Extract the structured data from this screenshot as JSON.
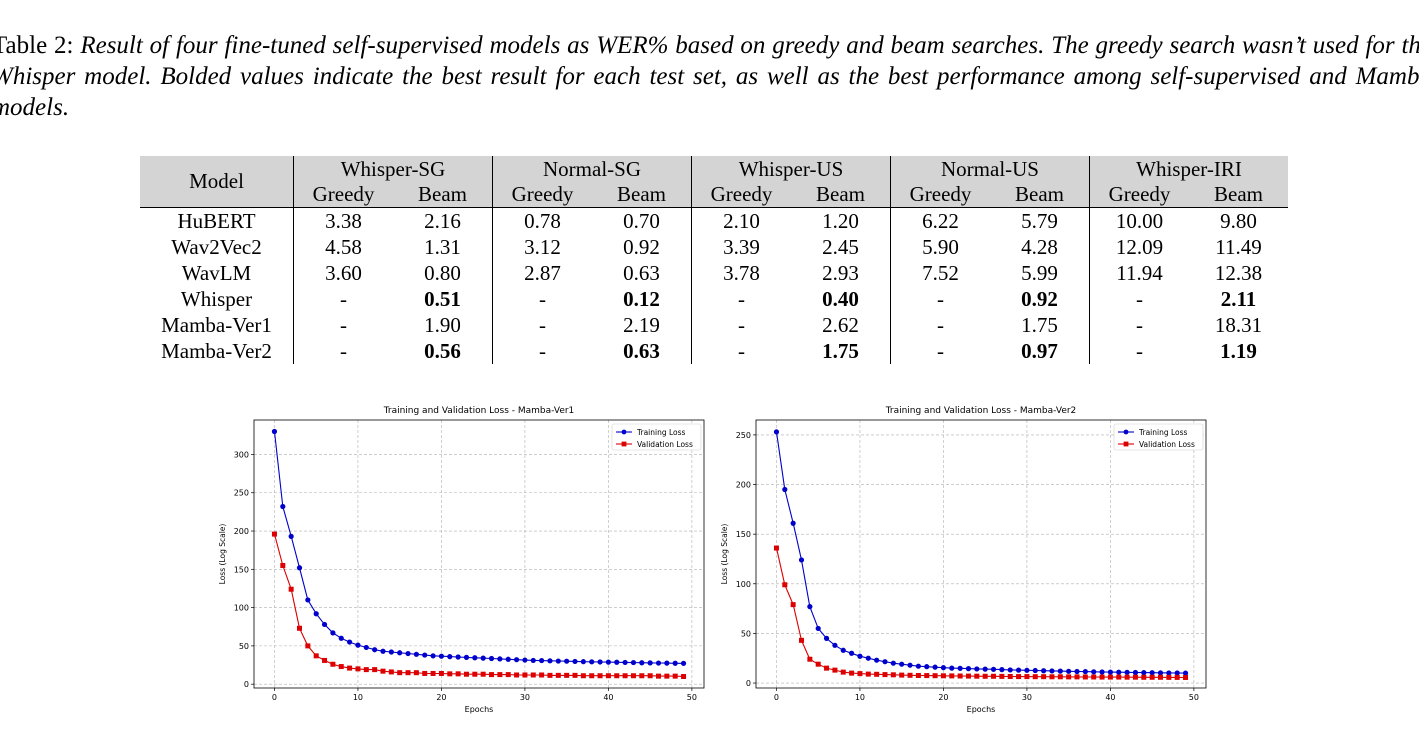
{
  "caption": {
    "label": "Table 2:",
    "text": "Result of four fine-tuned self-supervised models as WER% based on greedy and beam searches. The greedy search wasn’t used for the Whisper model. Bolded values indicate the best result for each test set, as well as the best performance among self-supervised and Mamba models."
  },
  "table": {
    "model_header": "Model",
    "groups": [
      "Whisper-SG",
      "Normal-SG",
      "Whisper-US",
      "Normal-US",
      "Whisper-IRI"
    ],
    "sub": [
      "Greedy",
      "Beam"
    ],
    "rows": [
      {
        "model": "HuBERT",
        "cells": [
          "3.38",
          "2.16",
          "0.78",
          "0.70",
          "2.10",
          "1.20",
          "6.22",
          "5.79",
          "10.00",
          "9.80"
        ],
        "bold": []
      },
      {
        "model": "Wav2Vec2",
        "cells": [
          "4.58",
          "1.31",
          "3.12",
          "0.92",
          "3.39",
          "2.45",
          "5.90",
          "4.28",
          "12.09",
          "11.49"
        ],
        "bold": []
      },
      {
        "model": "WavLM",
        "cells": [
          "3.60",
          "0.80",
          "2.87",
          "0.63",
          "3.78",
          "2.93",
          "7.52",
          "5.99",
          "11.94",
          "12.38"
        ],
        "bold": []
      },
      {
        "model": "Whisper",
        "cells": [
          "-",
          "0.51",
          "-",
          "0.12",
          "-",
          "0.40",
          "-",
          "0.92",
          "-",
          "2.11"
        ],
        "bold": [
          1,
          3,
          5,
          7,
          9
        ]
      },
      {
        "model": "Mamba-Ver1",
        "cells": [
          "-",
          "1.90",
          "-",
          "2.19",
          "-",
          "2.62",
          "-",
          "1.75",
          "-",
          "18.31"
        ],
        "bold": []
      },
      {
        "model": "Mamba-Ver2",
        "cells": [
          "-",
          "0.56",
          "-",
          "0.63",
          "-",
          "1.75",
          "-",
          "0.97",
          "-",
          "1.19"
        ],
        "bold": [
          1,
          3,
          5,
          7,
          9
        ]
      }
    ]
  },
  "chart_data": [
    {
      "type": "line",
      "title": "Training and Validation Loss - Mamba-Ver1",
      "xlabel": "Epochs",
      "ylabel": "Loss (Log Scale)",
      "xlim": [
        -2.45,
        51.45
      ],
      "ylim": [
        -5,
        345
      ],
      "xticks": [
        0,
        10,
        20,
        30,
        40,
        50
      ],
      "yticks": [
        0,
        50,
        100,
        150,
        200,
        250,
        300
      ],
      "grid": true,
      "legend": "top-right",
      "series": [
        {
          "name": "Training Loss",
          "color": "#0000cc",
          "marker": "circle",
          "values": [
            330,
            232,
            193,
            152,
            110,
            92,
            78,
            67,
            60,
            55,
            51,
            48,
            45,
            43,
            42,
            41,
            40,
            39,
            38,
            37,
            36.5,
            36,
            35.5,
            35,
            34.5,
            34,
            33.5,
            33,
            32.5,
            32,
            31.5,
            31,
            30.8,
            30.5,
            30.2,
            30,
            29.7,
            29.4,
            29.2,
            29,
            28.8,
            28.6,
            28.4,
            28.2,
            28,
            27.8,
            27.6,
            27.5,
            27.3,
            27.2
          ]
        },
        {
          "name": "Validation Loss",
          "color": "#dd0000",
          "marker": "square",
          "values": [
            196,
            155,
            124,
            73,
            50,
            37,
            31,
            26,
            23,
            21,
            20,
            19,
            19,
            17,
            16,
            15,
            15,
            15,
            14,
            14,
            14,
            13.5,
            13.5,
            13,
            13,
            13,
            12.5,
            12.5,
            12.5,
            12,
            12,
            12,
            12,
            11.5,
            11.5,
            11.5,
            11.5,
            11,
            11,
            11,
            11,
            11,
            11,
            11,
            11,
            11,
            10.5,
            10.5,
            10.5,
            10
          ]
        }
      ]
    },
    {
      "type": "line",
      "title": "Training and Validation Loss - Mamba-Ver2",
      "xlabel": "Epochs",
      "ylabel": "Loss (Log Scale)",
      "xlim": [
        -2.45,
        51.45
      ],
      "ylim": [
        -5,
        265
      ],
      "xticks": [
        0,
        10,
        20,
        30,
        40,
        50
      ],
      "yticks": [
        0,
        50,
        100,
        150,
        200,
        250
      ],
      "grid": true,
      "legend": "top-right",
      "series": [
        {
          "name": "Training Loss",
          "color": "#0000cc",
          "marker": "circle",
          "values": [
            253,
            195,
            161,
            124,
            77,
            55,
            45,
            38,
            33,
            30,
            27,
            25,
            23,
            21.5,
            20,
            19,
            18,
            17,
            16.5,
            16,
            15.5,
            15,
            14.8,
            14.5,
            14.2,
            14,
            13.8,
            13.5,
            13.2,
            13,
            12.8,
            12.6,
            12.4,
            12.2,
            12,
            11.8,
            11.6,
            11.5,
            11.3,
            11.1,
            11,
            10.9,
            10.8,
            10.6,
            10.5,
            10.4,
            10.3,
            10.2,
            10.1,
            10
          ]
        },
        {
          "name": "Validation Loss",
          "color": "#dd0000",
          "marker": "square",
          "values": [
            136,
            99,
            79,
            43,
            24,
            19,
            15,
            13,
            11,
            10,
            9.5,
            9,
            8.8,
            8.5,
            8.3,
            8,
            7.8,
            7.6,
            7.5,
            7.4,
            7.3,
            7.2,
            7.1,
            7,
            6.9,
            6.8,
            6.8,
            6.7,
            6.6,
            6.5,
            6.5,
            6.4,
            6.4,
            6.3,
            6.3,
            6.2,
            6.2,
            6.1,
            6.1,
            6,
            6,
            6,
            5.9,
            5.9,
            5.8,
            5.8,
            5.8,
            5.7,
            5.7,
            5.6
          ]
        }
      ]
    }
  ]
}
